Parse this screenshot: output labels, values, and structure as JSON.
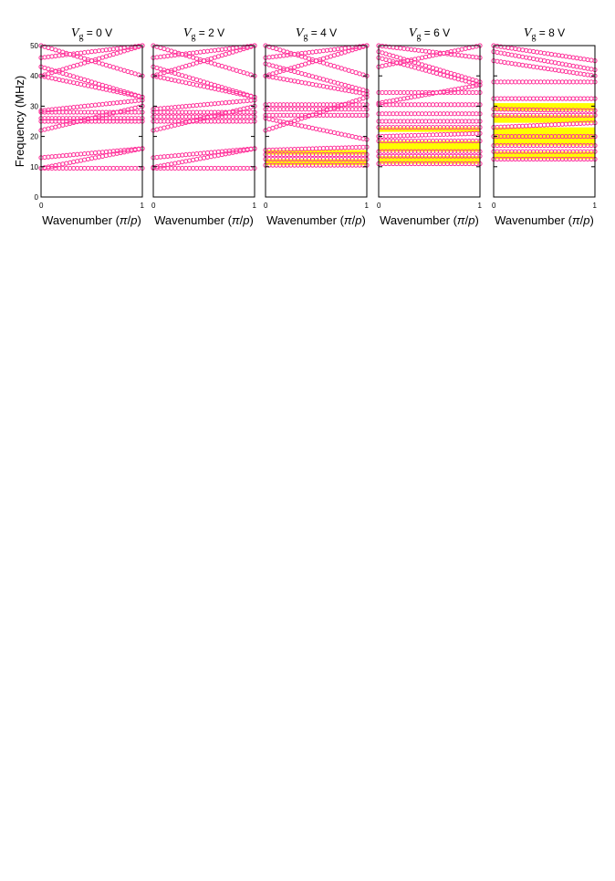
{
  "chart_data": {
    "type": "scatter",
    "ylabel": "Frequency (MHz)",
    "ylim": [
      0,
      50
    ],
    "yticks": [
      "0",
      "10",
      "20",
      "30",
      "40",
      "50"
    ],
    "xlim": [
      0,
      1
    ],
    "xticks": [
      "0",
      "1"
    ],
    "xlabel_parts": [
      "Wavenumber (",
      "π",
      "/",
      "p",
      ")"
    ],
    "title_parts": {
      "var": "V",
      "sub": "g"
    },
    "colors": {
      "marker": "#ff2e98",
      "band_gap": "#ffff00",
      "axis": "#000000"
    },
    "panels": [
      {
        "title_value": " = 0 V",
        "bands": [
          {
            "start": 9.5,
            "end": 9.5
          },
          {
            "start": 9.5,
            "end": 16
          },
          {
            "start": 13,
            "end": 16
          },
          {
            "start": 25,
            "end": 25
          },
          {
            "start": 26,
            "end": 26
          },
          {
            "start": 28,
            "end": 28
          },
          {
            "start": 28.5,
            "end": 32
          },
          {
            "start": 40,
            "end": 33
          },
          {
            "start": 43,
            "end": 33
          },
          {
            "start": 22,
            "end": 30
          },
          {
            "start": 40,
            "end": 50
          },
          {
            "start": 50,
            "end": 40
          },
          {
            "start": 46,
            "end": 50
          }
        ],
        "gaps": []
      },
      {
        "title_value": " = 2 V",
        "bands": [
          {
            "start": 9.5,
            "end": 9.5
          },
          {
            "start": 9.8,
            "end": 16
          },
          {
            "start": 13,
            "end": 16
          },
          {
            "start": 25,
            "end": 25
          },
          {
            "start": 26.5,
            "end": 26.5
          },
          {
            "start": 28,
            "end": 28
          },
          {
            "start": 29,
            "end": 32
          },
          {
            "start": 40,
            "end": 33
          },
          {
            "start": 43,
            "end": 33
          },
          {
            "start": 22,
            "end": 30
          },
          {
            "start": 40,
            "end": 50
          },
          {
            "start": 50,
            "end": 40
          },
          {
            "start": 46,
            "end": 50
          }
        ],
        "gaps": []
      },
      {
        "title_value": " = 4 V",
        "bands": [
          {
            "start": 10.5,
            "end": 10.5
          },
          {
            "start": 12.5,
            "end": 12.5
          },
          {
            "start": 14,
            "end": 14
          },
          {
            "start": 15.5,
            "end": 16.5
          },
          {
            "start": 26,
            "end": 19
          },
          {
            "start": 27,
            "end": 27
          },
          {
            "start": 29,
            "end": 29
          },
          {
            "start": 30.5,
            "end": 30.5
          },
          {
            "start": 22,
            "end": 33
          },
          {
            "start": 40,
            "end": 34
          },
          {
            "start": 44,
            "end": 35
          },
          {
            "start": 40,
            "end": 50
          },
          {
            "start": 50,
            "end": 40
          },
          {
            "start": 46,
            "end": 50
          }
        ],
        "gaps": [
          [
            10.5,
            12.5
          ],
          [
            14,
            15.5
          ]
        ]
      },
      {
        "title_value": " = 6 V",
        "bands": [
          {
            "start": 11,
            "end": 11
          },
          {
            "start": 13.5,
            "end": 13.5
          },
          {
            "start": 15,
            "end": 15
          },
          {
            "start": 18.5,
            "end": 18.5
          },
          {
            "start": 20,
            "end": 21
          },
          {
            "start": 23,
            "end": 23
          },
          {
            "start": 25,
            "end": 25
          },
          {
            "start": 27.5,
            "end": 27.5
          },
          {
            "start": 30.5,
            "end": 30.5
          },
          {
            "start": 34.5,
            "end": 34.5
          },
          {
            "start": 31,
            "end": 37
          },
          {
            "start": 46,
            "end": 37
          },
          {
            "start": 48,
            "end": 38
          },
          {
            "start": 43,
            "end": 50
          },
          {
            "start": 50,
            "end": 46
          }
        ],
        "gaps": [
          [
            11,
            13.5
          ],
          [
            15,
            18.5
          ],
          [
            21.5,
            23
          ]
        ]
      },
      {
        "title_value": " = 8 V",
        "bands": [
          {
            "start": 12.5,
            "end": 12.5
          },
          {
            "start": 15,
            "end": 15
          },
          {
            "start": 17,
            "end": 17
          },
          {
            "start": 20,
            "end": 20
          },
          {
            "start": 23,
            "end": 24.5
          },
          {
            "start": 27,
            "end": 27
          },
          {
            "start": 29,
            "end": 28.5
          },
          {
            "start": 32.5,
            "end": 32.5
          },
          {
            "start": 38,
            "end": 38
          },
          {
            "start": 45,
            "end": 40
          },
          {
            "start": 48,
            "end": 42
          },
          {
            "start": 50,
            "end": 45
          }
        ],
        "gaps": [
          [
            12.5,
            15
          ],
          [
            17,
            23
          ],
          [
            24.5,
            27
          ],
          [
            28.5,
            31
          ]
        ]
      }
    ]
  }
}
